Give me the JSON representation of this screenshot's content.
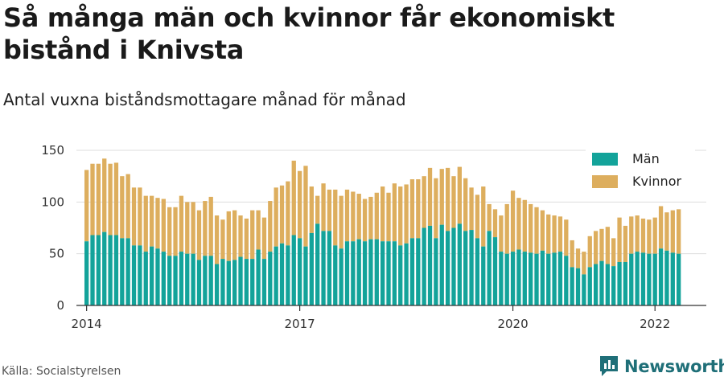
{
  "title": "Så många män och kvinnor får ekonomiskt bistånd i Knivsta",
  "subtitle": "Antal vuxna biståndsmottagare månad för månad",
  "source": "Källa: Socialstyrelsen",
  "brand": "Newsworthy",
  "colors": {
    "men": "#13a39a",
    "women": "#ddae5e",
    "grid": "#dddddd",
    "brand": "#1f6f78"
  },
  "chart_data": {
    "type": "bar",
    "stacked": true,
    "x_start": "2014-01",
    "x_ticks": [
      "2014",
      "2017",
      "2020",
      "2022"
    ],
    "y_ticks": [
      0,
      50,
      100,
      150
    ],
    "ylim": [
      0,
      150
    ],
    "legend": "top-right",
    "series": [
      {
        "name": "Män",
        "values": [
          62,
          68,
          68,
          71,
          68,
          68,
          65,
          65,
          58,
          58,
          52,
          57,
          55,
          52,
          48,
          48,
          52,
          50,
          50,
          44,
          48,
          48,
          40,
          45,
          43,
          44,
          47,
          45,
          45,
          54,
          45,
          52,
          57,
          60,
          58,
          68,
          65,
          57,
          70,
          79,
          72,
          72,
          58,
          55,
          62,
          62,
          64,
          62,
          64,
          64,
          62,
          62,
          62,
          58,
          60,
          65,
          65,
          75,
          77,
          65,
          78,
          72,
          75,
          79,
          72,
          73,
          65,
          57,
          72,
          66,
          52,
          50,
          52,
          54,
          52,
          51,
          50,
          53,
          50,
          51,
          52,
          48,
          37,
          36,
          30,
          37,
          40,
          43,
          40,
          38,
          42,
          42,
          50,
          52,
          51,
          50,
          50,
          55,
          53,
          51,
          50
        ],
        "totals": [
          131,
          137,
          137,
          142,
          137,
          138,
          125,
          127,
          114,
          114,
          106,
          106,
          104,
          103,
          95,
          95,
          106,
          100,
          100,
          92,
          101,
          105,
          87,
          83,
          91,
          92,
          87,
          84,
          92,
          92,
          85,
          101,
          114,
          116,
          120,
          140,
          130,
          135,
          115,
          106,
          118,
          112,
          112,
          106,
          112,
          110,
          108,
          103,
          105,
          109,
          115,
          109,
          118,
          115,
          117,
          122,
          122,
          125,
          133,
          123,
          132,
          133,
          125,
          134,
          123,
          114,
          107,
          115,
          98,
          93,
          87,
          98,
          111,
          104,
          102,
          98,
          95,
          92,
          88,
          87,
          86,
          83,
          63,
          55,
          52,
          67,
          72,
          74,
          76,
          65,
          85,
          77,
          86,
          87,
          84,
          83,
          85,
          96,
          90,
          92,
          93
        ]
      },
      {
        "name": "Kvinnor"
      }
    ]
  }
}
